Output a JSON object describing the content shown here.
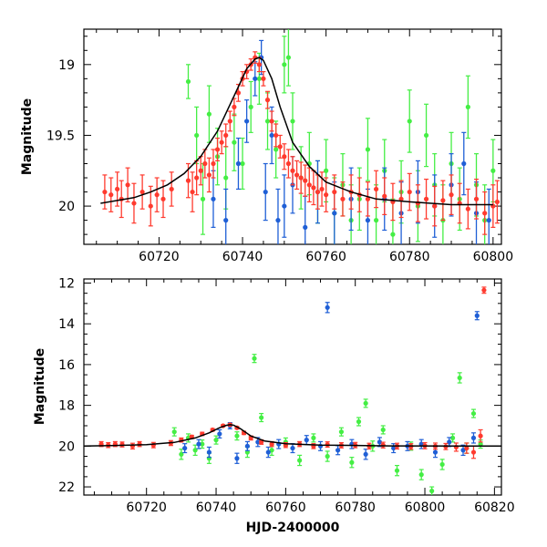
{
  "figure": {
    "x_axis_label": "HJD-2400000"
  },
  "chart_data": [
    {
      "type": "scatter",
      "panel": "top",
      "ylabel": "Magnitude",
      "xlabel": "",
      "xlim": [
        60702,
        60802
      ],
      "ylim": [
        20.27,
        18.75
      ],
      "y_inverted": true,
      "grid": false,
      "x_ticks": [
        60720,
        60740,
        60760,
        60780,
        60800
      ],
      "y_ticks": [
        19,
        19.5,
        20
      ],
      "x_tick_labels": [
        "60720",
        "60740",
        "60760",
        "60780",
        "60800"
      ],
      "y_tick_labels": [
        "19",
        "19.5",
        "20"
      ],
      "colors": {
        "red": "#ff3a2e",
        "green": "#44ee44",
        "blue": "#1f5fd6",
        "model": "#000000"
      },
      "series": [
        {
          "color_key": "red",
          "x": [
            60707,
            60708.5,
            60710,
            60711,
            60712.5,
            60714,
            60716,
            60718,
            60719.5,
            60721,
            60723,
            60727,
            60728,
            60729,
            60730,
            60731,
            60732,
            60733,
            60734,
            60735,
            60736,
            60737,
            60738,
            60739,
            60740,
            60741,
            60742,
            60743,
            60744,
            60745,
            60746,
            60747,
            60748,
            60749,
            60750,
            60751,
            60752,
            60753,
            60754,
            60755,
            60756,
            60757,
            60758,
            60759,
            60760,
            60762,
            60764,
            60766,
            60768,
            60770,
            60772,
            60774,
            60776,
            60778,
            60780,
            60782,
            60784,
            60786,
            60788,
            60790,
            60792,
            60794,
            60796,
            60798,
            60800,
            60801
          ],
          "y": [
            19.9,
            19.92,
            19.88,
            19.95,
            19.85,
            19.98,
            19.9,
            20.0,
            19.92,
            19.95,
            19.88,
            19.82,
            19.9,
            19.8,
            19.75,
            19.7,
            19.78,
            19.7,
            19.6,
            19.55,
            19.5,
            19.4,
            19.3,
            19.2,
            19.1,
            19.05,
            19.0,
            18.95,
            19.0,
            19.1,
            19.25,
            19.4,
            19.5,
            19.58,
            19.65,
            19.7,
            19.75,
            19.78,
            19.8,
            19.82,
            19.85,
            19.87,
            19.9,
            19.88,
            19.92,
            19.9,
            19.95,
            19.9,
            19.92,
            19.95,
            19.88,
            19.93,
            19.97,
            19.95,
            19.9,
            19.98,
            19.95,
            20.0,
            19.96,
            19.92,
            19.98,
            20.02,
            19.95,
            20.05,
            20.0,
            19.97
          ],
          "err": [
            0.12,
            0.12,
            0.12,
            0.13,
            0.12,
            0.14,
            0.12,
            0.14,
            0.12,
            0.13,
            0.12,
            0.12,
            0.14,
            0.12,
            0.1,
            0.1,
            0.12,
            0.1,
            0.08,
            0.08,
            0.08,
            0.07,
            0.06,
            0.06,
            0.05,
            0.05,
            0.04,
            0.04,
            0.05,
            0.05,
            0.06,
            0.07,
            0.08,
            0.08,
            0.09,
            0.1,
            0.1,
            0.1,
            0.11,
            0.11,
            0.12,
            0.12,
            0.12,
            0.12,
            0.12,
            0.12,
            0.12,
            0.12,
            0.12,
            0.12,
            0.13,
            0.13,
            0.13,
            0.13,
            0.13,
            0.13,
            0.14,
            0.14,
            0.14,
            0.14,
            0.14,
            0.14,
            0.14,
            0.15,
            0.15,
            0.15
          ]
        },
        {
          "color_key": "green",
          "x": [
            60727,
            60729,
            60730.5,
            60732,
            60734,
            60736,
            60738,
            60740,
            60742,
            60744,
            60746,
            60748,
            60750,
            60751,
            60752,
            60754,
            60756,
            60758,
            60760,
            60762,
            60764,
            60766,
            60768,
            60770,
            60772,
            60774,
            60776,
            60778,
            60780,
            60782,
            60784,
            60786,
            60788,
            60790,
            60792,
            60794,
            60796,
            60798,
            60800
          ],
          "y": [
            19.12,
            19.5,
            19.95,
            19.35,
            19.65,
            19.8,
            19.55,
            19.7,
            19.3,
            19.1,
            19.4,
            19.6,
            19.0,
            18.95,
            19.4,
            19.8,
            19.7,
            19.9,
            19.75,
            20.05,
            19.85,
            20.1,
            19.95,
            19.6,
            20.1,
            19.75,
            20.2,
            19.9,
            19.4,
            20.0,
            19.5,
            19.85,
            20.1,
            19.7,
            19.95,
            19.3,
            19.85,
            20.1,
            19.75
          ],
          "err": [
            0.12,
            0.2,
            0.25,
            0.2,
            0.2,
            0.22,
            0.2,
            0.18,
            0.18,
            0.18,
            0.2,
            0.2,
            0.2,
            0.2,
            0.2,
            0.22,
            0.22,
            0.22,
            0.22,
            0.25,
            0.22,
            0.25,
            0.22,
            0.22,
            0.25,
            0.22,
            0.25,
            0.22,
            0.22,
            0.25,
            0.22,
            0.22,
            0.25,
            0.22,
            0.22,
            0.22,
            0.22,
            0.25,
            0.22
          ]
        },
        {
          "color_key": "blue",
          "x": [
            60733,
            60736,
            60739,
            60741,
            60743,
            60744.5,
            60745.5,
            60747,
            60748.5,
            60750,
            60752,
            60755,
            60758,
            60762,
            60766,
            60770,
            60774,
            60778,
            60782,
            60786,
            60790,
            60793,
            60796,
            60799
          ],
          "y": [
            19.95,
            20.1,
            19.7,
            19.4,
            19.1,
            18.95,
            19.9,
            19.5,
            20.1,
            20.0,
            19.85,
            20.15,
            19.9,
            20.05,
            19.95,
            20.1,
            19.95,
            20.05,
            19.9,
            20.0,
            19.85,
            19.7,
            20.05,
            20.1
          ],
          "err": [
            0.2,
            0.22,
            0.18,
            0.15,
            0.12,
            0.12,
            0.2,
            0.2,
            0.22,
            0.22,
            0.2,
            0.22,
            0.22,
            0.22,
            0.22,
            0.22,
            0.22,
            0.22,
            0.22,
            0.22,
            0.22,
            0.22,
            0.22,
            0.22
          ]
        }
      ],
      "model": {
        "color_key": "model",
        "x": [
          60706,
          60710,
          60714,
          60718,
          60722,
          60726,
          60730,
          60734,
          60738,
          60741,
          60743,
          60744,
          60745,
          60747,
          60749,
          60752,
          60756,
          60760,
          60766,
          60772,
          60780,
          60790,
          60800
        ],
        "y": [
          19.98,
          19.96,
          19.94,
          19.9,
          19.85,
          19.77,
          19.65,
          19.47,
          19.22,
          19.03,
          18.96,
          18.95,
          18.97,
          19.1,
          19.3,
          19.55,
          19.72,
          19.83,
          19.9,
          19.95,
          19.97,
          19.99,
          19.99
        ]
      }
    },
    {
      "type": "scatter",
      "panel": "bottom",
      "ylabel": "Magnitude",
      "xlabel": "HJD-2400000",
      "xlim": [
        60702,
        60822
      ],
      "ylim": [
        22.4,
        11.8
      ],
      "y_inverted": true,
      "grid": false,
      "x_ticks": [
        60720,
        60740,
        60760,
        60780,
        60800,
        60820
      ],
      "y_ticks": [
        12,
        14,
        16,
        18,
        20,
        22
      ],
      "x_tick_labels": [
        "60720",
        "60740",
        "60760",
        "60780",
        "60800",
        "60820"
      ],
      "y_tick_labels": [
        "12",
        "14",
        "16",
        "18",
        "20",
        "22"
      ],
      "series": [
        {
          "color_key": "red",
          "x": [
            60707,
            60709,
            60711,
            60713,
            60716,
            60718,
            60722,
            60727,
            60730,
            60733,
            60736,
            60739,
            60742,
            60744,
            60746,
            60748,
            60750,
            60753,
            60756,
            60760,
            60764,
            60768,
            60772,
            60776,
            60780,
            60784,
            60788,
            60792,
            60796,
            60800,
            60803,
            60806,
            60809,
            60812,
            60814,
            60816,
            60817
          ],
          "y": [
            19.9,
            19.95,
            19.9,
            19.92,
            20.0,
            19.9,
            19.95,
            19.85,
            19.7,
            19.55,
            19.4,
            19.2,
            19.0,
            18.95,
            19.1,
            19.35,
            19.6,
            19.8,
            19.9,
            19.95,
            19.9,
            20.0,
            19.92,
            19.96,
            19.95,
            20.0,
            19.95,
            20.0,
            20.02,
            19.98,
            20.0,
            20.02,
            20.05,
            20.1,
            20.3,
            19.5,
            12.35
          ],
          "err": [
            0.12,
            0.12,
            0.12,
            0.12,
            0.14,
            0.12,
            0.13,
            0.12,
            0.1,
            0.08,
            0.08,
            0.06,
            0.05,
            0.05,
            0.06,
            0.08,
            0.1,
            0.11,
            0.12,
            0.12,
            0.12,
            0.12,
            0.13,
            0.13,
            0.13,
            0.14,
            0.14,
            0.14,
            0.14,
            0.15,
            0.15,
            0.15,
            0.2,
            0.25,
            0.3,
            0.3,
            0.15
          ]
        },
        {
          "color_key": "green",
          "x": [
            60728,
            60730,
            60732,
            60734,
            60736,
            60738,
            60740,
            60746,
            60749,
            60751,
            60753,
            60756,
            60760,
            60764,
            60768,
            60772,
            60776,
            60779,
            60781,
            60783,
            60785,
            60788,
            60792,
            60796,
            60799,
            60802,
            60805,
            60808,
            60810,
            60812,
            60814,
            60816
          ],
          "y": [
            19.3,
            20.4,
            19.6,
            20.2,
            19.9,
            20.6,
            19.7,
            19.5,
            20.3,
            15.7,
            18.6,
            20.2,
            19.8,
            20.7,
            19.6,
            20.5,
            19.3,
            20.8,
            18.8,
            17.9,
            20.0,
            19.2,
            21.2,
            20.0,
            21.4,
            22.2,
            20.9,
            19.6,
            16.65,
            20.1,
            18.4,
            19.9
          ],
          "err": [
            0.2,
            0.25,
            0.2,
            0.25,
            0.2,
            0.25,
            0.2,
            0.2,
            0.25,
            0.2,
            0.2,
            0.25,
            0.2,
            0.25,
            0.2,
            0.25,
            0.2,
            0.25,
            0.2,
            0.2,
            0.25,
            0.2,
            0.25,
            0.2,
            0.25,
            0.2,
            0.25,
            0.2,
            0.25,
            0.25,
            0.2,
            0.2
          ]
        },
        {
          "color_key": "blue",
          "x": [
            60731,
            60735,
            60738,
            60741,
            60744,
            60746,
            60749,
            60752,
            60755,
            60758,
            60762,
            60766,
            60770,
            60772,
            60775,
            60779,
            60783,
            60787,
            60791,
            60795,
            60799,
            60803,
            60807,
            60811,
            60814,
            60815
          ],
          "y": [
            20.1,
            19.9,
            20.3,
            19.4,
            19.0,
            20.6,
            20.0,
            19.8,
            20.3,
            19.9,
            20.1,
            19.7,
            20.0,
            13.2,
            20.2,
            19.9,
            20.4,
            19.8,
            20.1,
            20.0,
            19.9,
            20.3,
            19.8,
            20.2,
            19.6,
            13.6
          ],
          "err": [
            0.22,
            0.22,
            0.25,
            0.2,
            0.15,
            0.25,
            0.22,
            0.22,
            0.25,
            0.22,
            0.22,
            0.22,
            0.22,
            0.25,
            0.22,
            0.22,
            0.25,
            0.22,
            0.22,
            0.22,
            0.22,
            0.25,
            0.22,
            0.25,
            0.25,
            0.2
          ]
        }
      ],
      "model": {
        "color_key": "model",
        "x": [
          60702,
          60710,
          60720,
          60728,
          60734,
          60738,
          60741,
          60743,
          60744,
          60745,
          60747,
          60750,
          60754,
          60760,
          60770,
          60790,
          60822
        ],
        "y": [
          20.0,
          19.97,
          19.93,
          19.82,
          19.6,
          19.35,
          19.1,
          18.98,
          18.95,
          18.97,
          19.15,
          19.5,
          19.75,
          19.88,
          19.95,
          19.99,
          20.0
        ]
      }
    }
  ]
}
